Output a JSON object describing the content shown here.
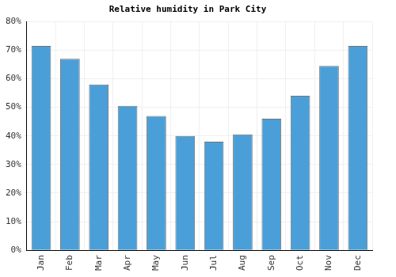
{
  "chart_data": {
    "type": "bar",
    "title": "Relative humidity in Park City",
    "categories": [
      "Jan",
      "Feb",
      "Mar",
      "Apr",
      "May",
      "Jun",
      "Jul",
      "Aug",
      "Sep",
      "Oct",
      "Nov",
      "Dec"
    ],
    "values": [
      71.5,
      67,
      58,
      50.5,
      47,
      40,
      38,
      40.5,
      46,
      54,
      64.5,
      71.5
    ],
    "color": "#4a9fd8",
    "ylim": [
      0,
      80
    ],
    "yticks": [
      {
        "value": 0,
        "label": "0%"
      },
      {
        "value": 10,
        "label": "10%"
      },
      {
        "value": 20,
        "label": "20%"
      },
      {
        "value": 30,
        "label": "30%"
      },
      {
        "value": 40,
        "label": "40%"
      },
      {
        "value": 50,
        "label": "50%"
      },
      {
        "value": 60,
        "label": "60%"
      },
      {
        "value": 70,
        "label": "70%"
      },
      {
        "value": 80,
        "label": "80%"
      }
    ],
    "grid": true
  }
}
